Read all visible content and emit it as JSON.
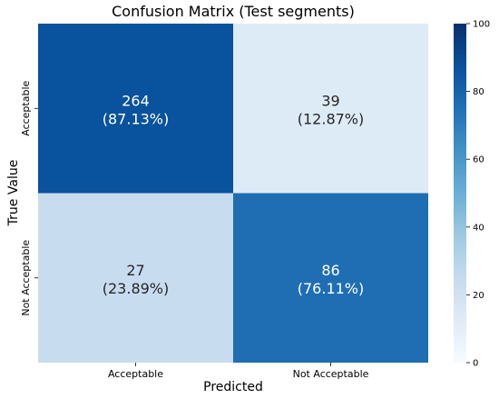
{
  "chart_data": {
    "type": "heatmap",
    "title": "Confusion Matrix (Test segments)",
    "xlabel": "Predicted",
    "ylabel": "True Value",
    "x_categories": [
      "Acceptable",
      "Not Acceptable"
    ],
    "y_categories": [
      "Acceptable",
      "Not Acceptable"
    ],
    "cells": [
      [
        {
          "count": 264,
          "percent": 87.13,
          "count_label": "264",
          "percent_label": "(87.13%)"
        },
        {
          "count": 39,
          "percent": 12.87,
          "count_label": "39",
          "percent_label": "(12.87%)"
        }
      ],
      [
        {
          "count": 27,
          "percent": 23.89,
          "count_label": "27",
          "percent_label": "(23.89%)"
        },
        {
          "count": 86,
          "percent": 76.11,
          "count_label": "86",
          "percent_label": "(76.11%)"
        }
      ]
    ],
    "color_value": "percent",
    "colorbar": {
      "range": [
        0,
        100
      ],
      "ticks": [
        "0",
        "20",
        "40",
        "60",
        "80",
        "100"
      ],
      "colormap": "Blues",
      "low_color": "#f7fbff",
      "high_color": "#08306b"
    }
  }
}
